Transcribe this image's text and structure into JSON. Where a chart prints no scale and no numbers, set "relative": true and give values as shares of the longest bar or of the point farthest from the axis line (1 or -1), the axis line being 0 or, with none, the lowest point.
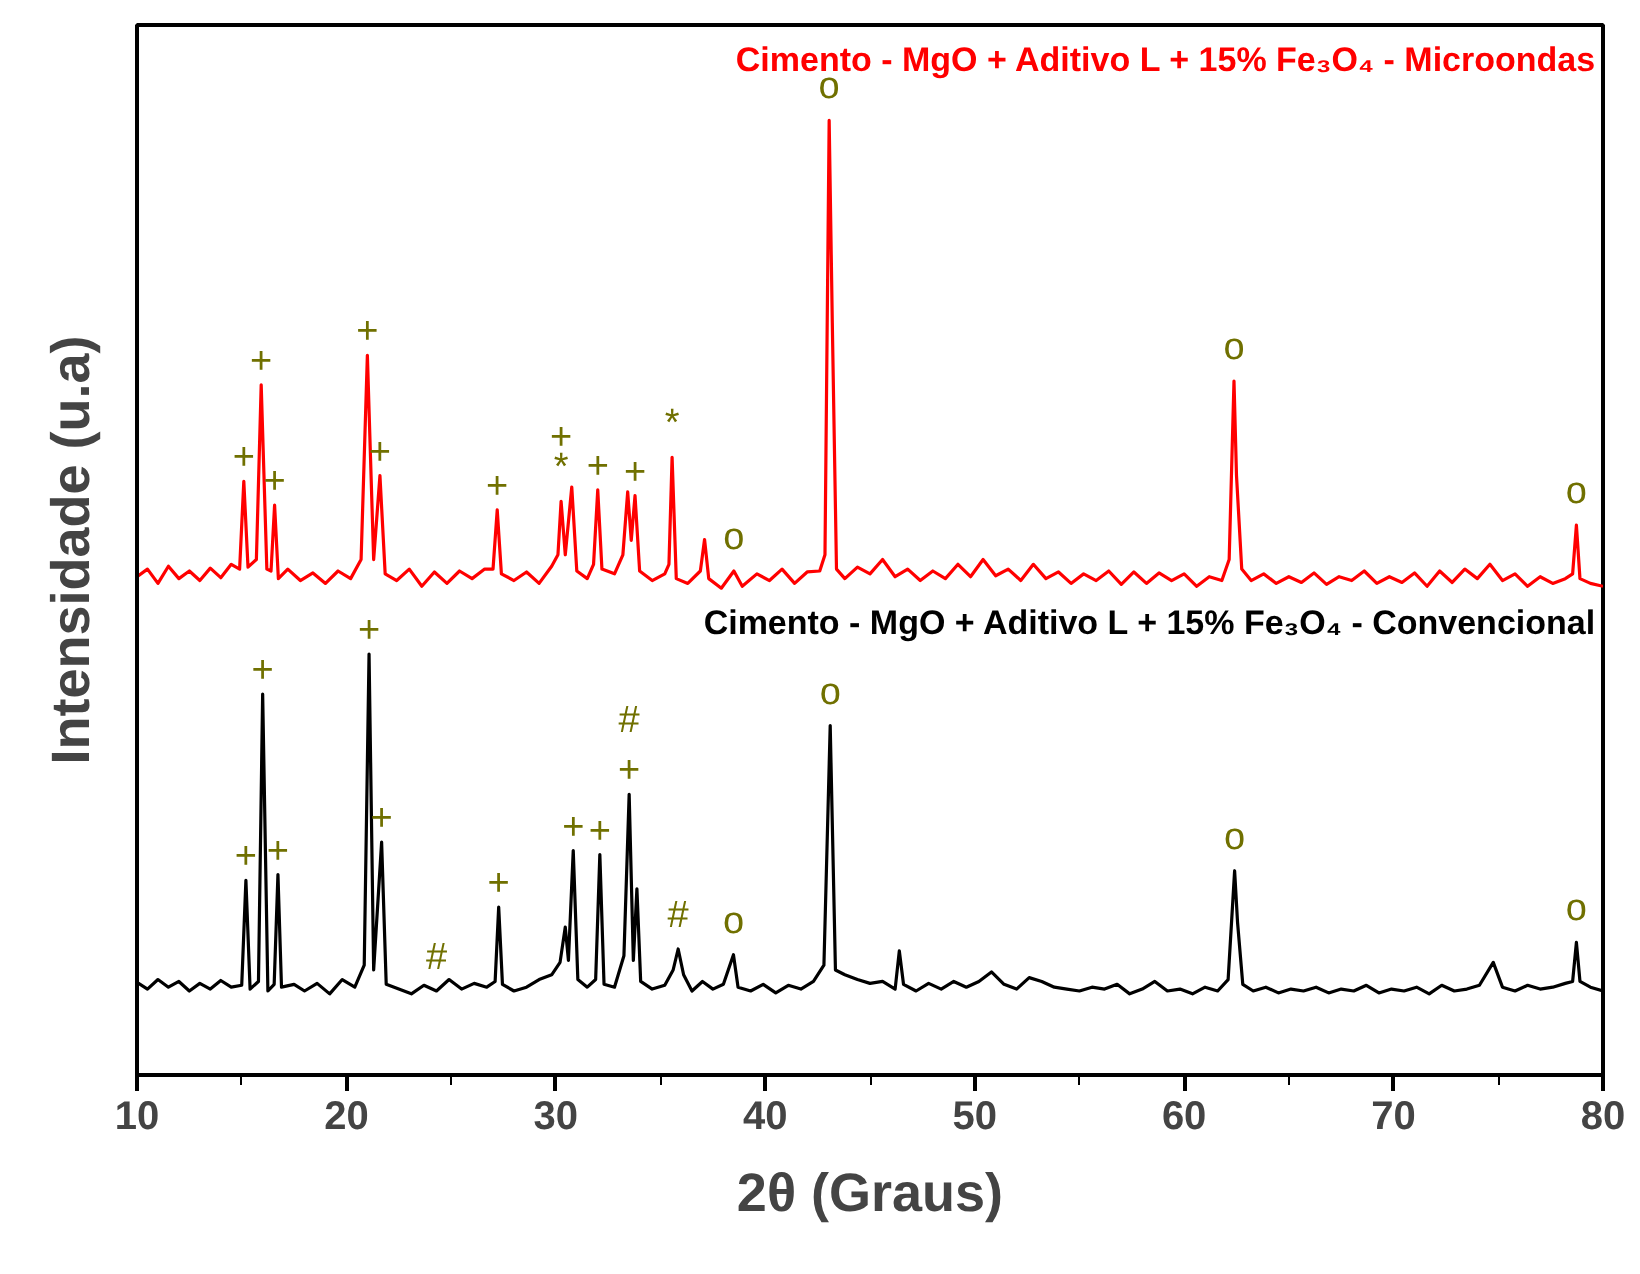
{
  "chart_data": {
    "type": "line",
    "xlabel": "2θ (Graus)",
    "ylabel": "Intensidade (u.a)",
    "relative": true,
    "xlim": [
      10,
      80
    ],
    "xticks": [
      10,
      20,
      30,
      40,
      50,
      60,
      70,
      80
    ],
    "grid": false,
    "marker": "none",
    "line_style": "solid",
    "series": [
      {
        "name": "Cimento - MgO + Aditivo L + 15% Fe₃O₄ - Microondas",
        "color": "#ff0000",
        "x": [
          10,
          10.5,
          11,
          11.5,
          12,
          12.5,
          13,
          13.5,
          14,
          14.5,
          14.9,
          15.1,
          15.3,
          15.7,
          15.93,
          16.2,
          16.4,
          16.57,
          16.75,
          17.2,
          17.8,
          18.4,
          19,
          19.6,
          20.2,
          20.7,
          21.0,
          21.3,
          21.6,
          21.85,
          22.4,
          23,
          23.6,
          24.2,
          24.8,
          25.4,
          26,
          26.6,
          27.0,
          27.2,
          27.4,
          28,
          28.6,
          29.2,
          29.8,
          30.1,
          30.25,
          30.45,
          30.76,
          31,
          31.5,
          31.8,
          32.0,
          32.2,
          32.8,
          33.2,
          33.43,
          33.6,
          33.78,
          34,
          34.6,
          35.2,
          35.4,
          35.55,
          35.75,
          36.3,
          36.9,
          37.1,
          37.3,
          37.9,
          38.5,
          38.9,
          39.6,
          40.2,
          40.8,
          41.4,
          42,
          42.6,
          42.85,
          43.05,
          43.2,
          43.4,
          43.8,
          44.4,
          45,
          45.6,
          46.2,
          46.8,
          47.4,
          48,
          48.6,
          49.2,
          49.8,
          50.4,
          51,
          51.6,
          52.2,
          52.8,
          53.4,
          54,
          54.6,
          55.2,
          55.8,
          56.4,
          57,
          57.6,
          58.2,
          58.8,
          59.4,
          60,
          60.6,
          61.2,
          61.8,
          62.15,
          62.38,
          62.5,
          62.75,
          63.2,
          63.8,
          64.4,
          65,
          65.6,
          66.2,
          66.8,
          67.4,
          68,
          68.6,
          69.2,
          69.8,
          70.4,
          71,
          71.6,
          72.2,
          72.8,
          73.4,
          74,
          74.6,
          75.2,
          75.8,
          76.4,
          77,
          77.6,
          78.2,
          78.55,
          78.73,
          78.9,
          79.4,
          80
        ],
        "values": [
          0.522,
          0.53,
          0.515,
          0.533,
          0.52,
          0.528,
          0.518,
          0.531,
          0.521,
          0.535,
          0.53,
          0.622,
          0.532,
          0.54,
          0.723,
          0.53,
          0.528,
          0.597,
          0.52,
          0.53,
          0.518,
          0.526,
          0.515,
          0.528,
          0.52,
          0.54,
          0.754,
          0.54,
          0.628,
          0.525,
          0.518,
          0.53,
          0.512,
          0.527,
          0.515,
          0.528,
          0.52,
          0.53,
          0.53,
          0.592,
          0.525,
          0.518,
          0.527,
          0.515,
          0.533,
          0.545,
          0.601,
          0.545,
          0.616,
          0.528,
          0.52,
          0.535,
          0.613,
          0.53,
          0.525,
          0.545,
          0.611,
          0.56,
          0.607,
          0.528,
          0.518,
          0.525,
          0.535,
          0.647,
          0.52,
          0.515,
          0.528,
          0.561,
          0.52,
          0.51,
          0.528,
          0.512,
          0.525,
          0.518,
          0.53,
          0.515,
          0.527,
          0.528,
          0.545,
          1.0,
          0.788,
          0.53,
          0.52,
          0.532,
          0.525,
          0.54,
          0.522,
          0.53,
          0.518,
          0.528,
          0.52,
          0.535,
          0.522,
          0.54,
          0.523,
          0.53,
          0.518,
          0.535,
          0.52,
          0.527,
          0.515,
          0.525,
          0.518,
          0.528,
          0.514,
          0.527,
          0.515,
          0.526,
          0.518,
          0.525,
          0.512,
          0.522,
          0.518,
          0.54,
          0.727,
          0.628,
          0.53,
          0.518,
          0.525,
          0.515,
          0.522,
          0.516,
          0.526,
          0.514,
          0.522,
          0.518,
          0.528,
          0.515,
          0.522,
          0.516,
          0.526,
          0.512,
          0.528,
          0.516,
          0.53,
          0.52,
          0.535,
          0.518,
          0.525,
          0.512,
          0.522,
          0.515,
          0.52,
          0.525,
          0.576,
          0.52,
          0.515,
          0.512
        ]
      },
      {
        "name": "Cimento - MgO + Aditivo L + 15% Fe₃O₄ - Convencional",
        "color": "#000000",
        "x": [
          10,
          10.5,
          11,
          11.5,
          12,
          12.5,
          13,
          13.5,
          14,
          14.5,
          15.0,
          15.2,
          15.4,
          15.8,
          16.0,
          16.25,
          16.55,
          16.73,
          16.9,
          17.5,
          18,
          18.6,
          19.2,
          19.8,
          20.4,
          20.85,
          21.08,
          21.3,
          21.68,
          21.9,
          22.5,
          23.1,
          23.7,
          24.3,
          24.9,
          25.5,
          26.1,
          26.7,
          27.1,
          27.27,
          27.45,
          28,
          28.6,
          29.2,
          29.8,
          30.2,
          30.45,
          30.6,
          30.83,
          31.05,
          31.5,
          31.9,
          32.1,
          32.3,
          32.8,
          33.25,
          33.5,
          33.7,
          33.87,
          34.05,
          34.6,
          35.2,
          35.6,
          35.84,
          36.1,
          36.5,
          37,
          37.5,
          38,
          38.48,
          38.7,
          39.3,
          39.9,
          40.5,
          41.1,
          41.7,
          42.3,
          42.8,
          43.1,
          43.35,
          43.8,
          44.4,
          45,
          45.6,
          46.2,
          46.4,
          46.6,
          47.2,
          47.8,
          48.4,
          49,
          49.6,
          50.2,
          50.8,
          51.4,
          52,
          52.6,
          53.2,
          53.8,
          54.4,
          55,
          55.6,
          56.2,
          56.8,
          57.4,
          58,
          58.6,
          59.2,
          59.8,
          60.4,
          61,
          61.6,
          62.1,
          62.41,
          62.55,
          62.8,
          63.3,
          63.9,
          64.5,
          65.1,
          65.7,
          66.3,
          66.9,
          67.5,
          68.1,
          68.7,
          69.3,
          69.9,
          70.5,
          71.1,
          71.7,
          72.3,
          72.9,
          73.5,
          74.1,
          74.76,
          75.2,
          75.8,
          76.4,
          77,
          77.6,
          78.2,
          78.55,
          78.73,
          78.9,
          79.4,
          80
        ],
        "values": [
          0.097,
          0.09,
          0.1,
          0.092,
          0.098,
          0.088,
          0.096,
          0.09,
          0.099,
          0.092,
          0.094,
          0.204,
          0.09,
          0.098,
          0.399,
          0.088,
          0.095,
          0.21,
          0.092,
          0.095,
          0.088,
          0.096,
          0.085,
          0.1,
          0.092,
          0.115,
          0.441,
          0.11,
          0.244,
          0.095,
          0.09,
          0.085,
          0.094,
          0.088,
          0.1,
          0.09,
          0.096,
          0.092,
          0.098,
          0.176,
          0.095,
          0.088,
          0.092,
          0.1,
          0.105,
          0.118,
          0.155,
          0.12,
          0.235,
          0.1,
          0.092,
          0.1,
          0.231,
          0.095,
          0.092,
          0.125,
          0.294,
          0.12,
          0.195,
          0.098,
          0.09,
          0.094,
          0.11,
          0.132,
          0.105,
          0.088,
          0.098,
          0.09,
          0.095,
          0.126,
          0.092,
          0.088,
          0.095,
          0.086,
          0.094,
          0.09,
          0.098,
          0.115,
          0.366,
          0.11,
          0.105,
          0.1,
          0.096,
          0.098,
          0.09,
          0.13,
          0.095,
          0.088,
          0.096,
          0.09,
          0.098,
          0.092,
          0.098,
          0.108,
          0.095,
          0.09,
          0.102,
          0.098,
          0.092,
          0.09,
          0.088,
          0.092,
          0.09,
          0.095,
          0.085,
          0.09,
          0.098,
          0.088,
          0.09,
          0.085,
          0.092,
          0.088,
          0.1,
          0.214,
          0.16,
          0.095,
          0.088,
          0.092,
          0.086,
          0.09,
          0.088,
          0.092,
          0.086,
          0.09,
          0.088,
          0.094,
          0.086,
          0.09,
          0.088,
          0.092,
          0.085,
          0.094,
          0.088,
          0.09,
          0.094,
          0.118,
          0.092,
          0.088,
          0.094,
          0.09,
          0.092,
          0.096,
          0.098,
          0.139,
          0.098,
          0.092,
          0.088
        ]
      }
    ],
    "annotations": [
      {
        "text": "+",
        "x": 15.1,
        "y": 0.622
      },
      {
        "text": "+",
        "x": 15.93,
        "y": 0.723
      },
      {
        "text": "+",
        "x": 16.57,
        "y": 0.597
      },
      {
        "text": "+",
        "x": 21.0,
        "y": 0.754
      },
      {
        "text": "+",
        "x": 21.6,
        "y": 0.628
      },
      {
        "text": "+",
        "x": 27.2,
        "y": 0.592
      },
      {
        "text": "*",
        "x": 30.25,
        "y": 0.601
      },
      {
        "text": "+",
        "x": 30.25,
        "y": 0.601
      },
      {
        "text": "+",
        "x": 32.0,
        "y": 0.613
      },
      {
        "text": "+",
        "x": 33.78,
        "y": 0.607
      },
      {
        "text": "*",
        "x": 35.55,
        "y": 0.647
      },
      {
        "text": "o",
        "x": 38.5,
        "y": 0.528
      },
      {
        "text": "o",
        "x": 43.05,
        "y": 1.0
      },
      {
        "text": "o",
        "x": 62.38,
        "y": 0.727
      },
      {
        "text": "o",
        "x": 78.73,
        "y": 0.576
      },
      {
        "text": "+",
        "x": 16.0,
        "y": 0.399
      },
      {
        "text": "+",
        "x": 21.08,
        "y": 0.441
      },
      {
        "text": "+",
        "x": 15.2,
        "y": 0.204
      },
      {
        "text": "+",
        "x": 16.73,
        "y": 0.21
      },
      {
        "text": "+",
        "x": 21.68,
        "y": 0.244
      },
      {
        "text": "#",
        "x": 24.3,
        "y": 0.088
      },
      {
        "text": "+",
        "x": 27.27,
        "y": 0.176
      },
      {
        "text": "+",
        "x": 30.83,
        "y": 0.235
      },
      {
        "text": "+",
        "x": 32.1,
        "y": 0.231
      },
      {
        "text": "+",
        "x": 33.5,
        "y": 0.294
      },
      {
        "text": "#",
        "x": 33.5,
        "y": 0.294
      },
      {
        "text": "#",
        "x": 35.84,
        "y": 0.132
      },
      {
        "text": "o",
        "x": 38.48,
        "y": 0.126
      },
      {
        "text": "o",
        "x": 43.1,
        "y": 0.366
      },
      {
        "text": "o",
        "x": 62.41,
        "y": 0.214
      },
      {
        "text": "o",
        "x": 78.73,
        "y": 0.139
      }
    ]
  }
}
